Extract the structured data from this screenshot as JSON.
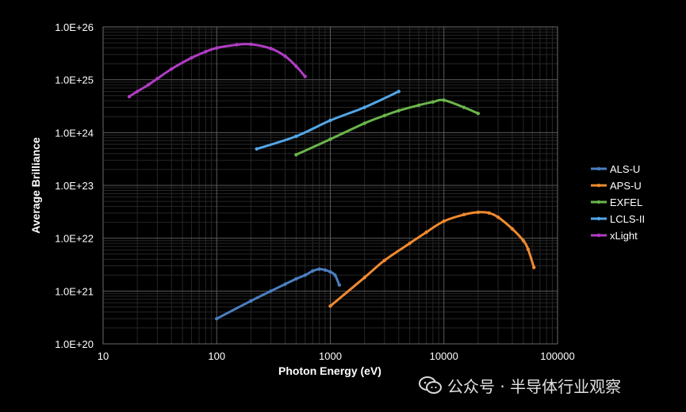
{
  "chart_data": {
    "type": "line",
    "xlabel": "Photon Energy (eV)",
    "ylabel": "Average Brilliance",
    "xscale": "log",
    "yscale": "log",
    "xlim": [
      10,
      100000
    ],
    "ylim": [
      1e+20,
      1e+26
    ],
    "xticks": [
      10,
      100,
      1000,
      10000,
      100000
    ],
    "xtick_labels": [
      "10",
      "100",
      "1000",
      "10000",
      "100000"
    ],
    "yticks": [
      1e+20,
      1e+21,
      1e+22,
      1e+23,
      1e+24,
      1e+25,
      1e+26
    ],
    "ytick_labels": [
      "1.0E+20",
      "1.0E+21",
      "1.0E+22",
      "1.0E+23",
      "1.0E+24",
      "1.0E+25",
      "1.0E+26"
    ],
    "grid": true,
    "legend_position": "right",
    "series": [
      {
        "name": "ALS-U",
        "color": "#4a7fc1",
        "points": [
          [
            100,
            3e+20
          ],
          [
            200,
            6.5e+20
          ],
          [
            300,
            1e+21
          ],
          [
            400,
            1.35e+21
          ],
          [
            500,
            1.7e+21
          ],
          [
            600,
            2e+21
          ],
          [
            700,
            2.4e+21
          ],
          [
            800,
            2.6e+21
          ],
          [
            900,
            2.5e+21
          ],
          [
            1000,
            2.3e+21
          ],
          [
            1100,
            2e+21
          ],
          [
            1200,
            1.3e+21
          ]
        ]
      },
      {
        "name": "APS-U",
        "color": "#f08a2e",
        "points": [
          [
            1000,
            5.2e+20
          ],
          [
            2000,
            1.8e+21
          ],
          [
            3000,
            3.8e+21
          ],
          [
            5000,
            8e+21
          ],
          [
            7000,
            1.3e+22
          ],
          [
            10000,
            2.1e+22
          ],
          [
            15000,
            2.8e+22
          ],
          [
            20000,
            3.1e+22
          ],
          [
            25000,
            3e+22
          ],
          [
            30000,
            2.5e+22
          ],
          [
            40000,
            1.5e+22
          ],
          [
            50000,
            9e+21
          ],
          [
            55000,
            6.2e+21
          ],
          [
            62000,
            2.8e+21
          ]
        ]
      },
      {
        "name": "EXFEL",
        "color": "#6ab54a",
        "points": [
          [
            500,
            3.8e+23
          ],
          [
            1000,
            7.5e+23
          ],
          [
            2000,
            1.5e+24
          ],
          [
            3000,
            2.1e+24
          ],
          [
            4000,
            2.6e+24
          ],
          [
            6000,
            3.3e+24
          ],
          [
            8000,
            3.8e+24
          ],
          [
            10000,
            4.1e+24
          ],
          [
            15000,
            3e+24
          ],
          [
            20000,
            2.3e+24
          ]
        ]
      },
      {
        "name": "LCLS-II",
        "color": "#52a7e8",
        "points": [
          [
            225,
            4.9e+23
          ],
          [
            500,
            8.5e+23
          ],
          [
            1000,
            1.7e+24
          ],
          [
            2000,
            3e+24
          ],
          [
            4000,
            6e+24
          ]
        ]
      },
      {
        "name": "xLight",
        "color": "#b03cc4",
        "points": [
          [
            17,
            4.8e+24
          ],
          [
            20,
            6e+24
          ],
          [
            25,
            8e+24
          ],
          [
            30,
            1.05e+25
          ],
          [
            40,
            1.6e+25
          ],
          [
            60,
            2.6e+25
          ],
          [
            80,
            3.4e+25
          ],
          [
            100,
            4e+25
          ],
          [
            150,
            4.6e+25
          ],
          [
            200,
            4.7e+25
          ],
          [
            300,
            3.9e+25
          ],
          [
            400,
            2.8e+25
          ],
          [
            500,
            1.8e+25
          ],
          [
            600,
            1.15e+25
          ]
        ]
      }
    ]
  },
  "watermark": {
    "text": "公众号 · 半导体行业观察"
  }
}
